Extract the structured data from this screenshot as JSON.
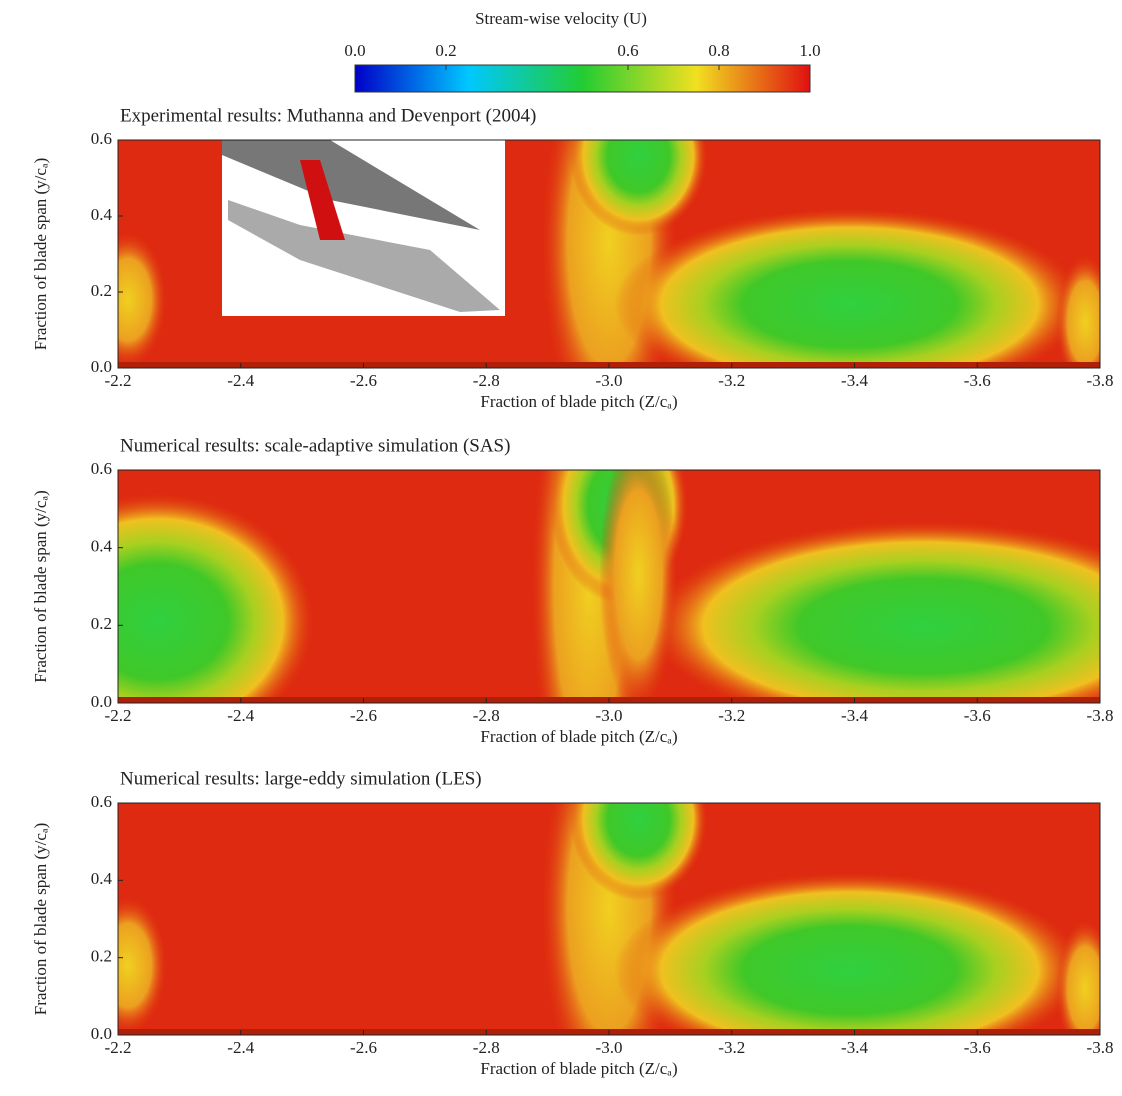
{
  "colorbar": {
    "title": "Stream-wise velocity (U)",
    "clim": [
      0,
      1
    ],
    "ticks": [
      {
        "value": 0,
        "label": "0.0"
      },
      0.2,
      0.6,
      0.8,
      {
        "value": 1,
        "label": "1.0"
      }
    ]
  },
  "chart_data": [
    {
      "type": "contour",
      "title": "Experimental results: Muthanna and Devenport (2004)",
      "xlabel": "Fraction of blade pitch (Z/cₐ)",
      "ylabel": "Fraction of blade span (y/cₐ)",
      "xlim": [
        -2.2,
        -3.8
      ],
      "ylim": [
        0,
        0.6
      ],
      "xticks": [
        -2.2,
        -2.4,
        -2.6,
        -2.8,
        {
          "value": -3,
          "label": "-3.0"
        },
        -3.2,
        -3.4,
        -3.6,
        -3.8
      ],
      "yticks": [
        {
          "value": 0,
          "label": "0.0"
        },
        0.2,
        0.4,
        0.6
      ]
    },
    {
      "type": "contour",
      "title": "Numerical results: scale-adaptive simulation (SAS)",
      "xlabel": "Fraction of blade pitch (Z/cₐ)",
      "ylabel": "Fraction of blade span (y/cₐ)",
      "xlim": [
        -2.2,
        -3.8
      ],
      "ylim": [
        0,
        0.6
      ],
      "xticks": [
        -2.2,
        -2.4,
        -2.6,
        -2.8,
        {
          "value": -3,
          "label": "-3.0"
        },
        -3.2,
        -3.4,
        -3.6,
        -3.8
      ],
      "yticks": [
        {
          "value": 0,
          "label": "0.0"
        },
        0.2,
        0.4,
        0.6
      ]
    },
    {
      "type": "contour",
      "title": "Numerical results: large-eddy simulation (LES)",
      "xlabel": "Fraction of blade pitch (Z/cₐ)",
      "ylabel": "Fraction of blade span (y/cₐ)",
      "xlim": [
        -2.2,
        -3.8
      ],
      "ylim": [
        0,
        0.6
      ],
      "xticks": [
        -2.2,
        -2.4,
        -2.6,
        -2.8,
        {
          "value": -3,
          "label": "-3.0"
        },
        -3.2,
        -3.4,
        -3.6,
        -3.8
      ],
      "yticks": [
        {
          "value": 0,
          "label": "0.0"
        },
        0.2,
        0.4,
        0.6
      ]
    }
  ]
}
